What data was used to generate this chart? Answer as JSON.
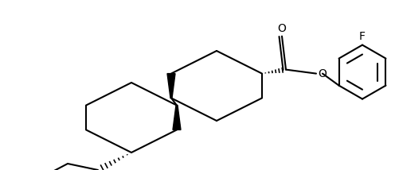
{
  "bg_color": "#ffffff",
  "line_color": "#000000",
  "line_width": 1.5,
  "fig_width": 4.96,
  "fig_height": 2.14,
  "dpi": 100,
  "xlim": [
    0,
    496
  ],
  "ylim": [
    0,
    214
  ]
}
